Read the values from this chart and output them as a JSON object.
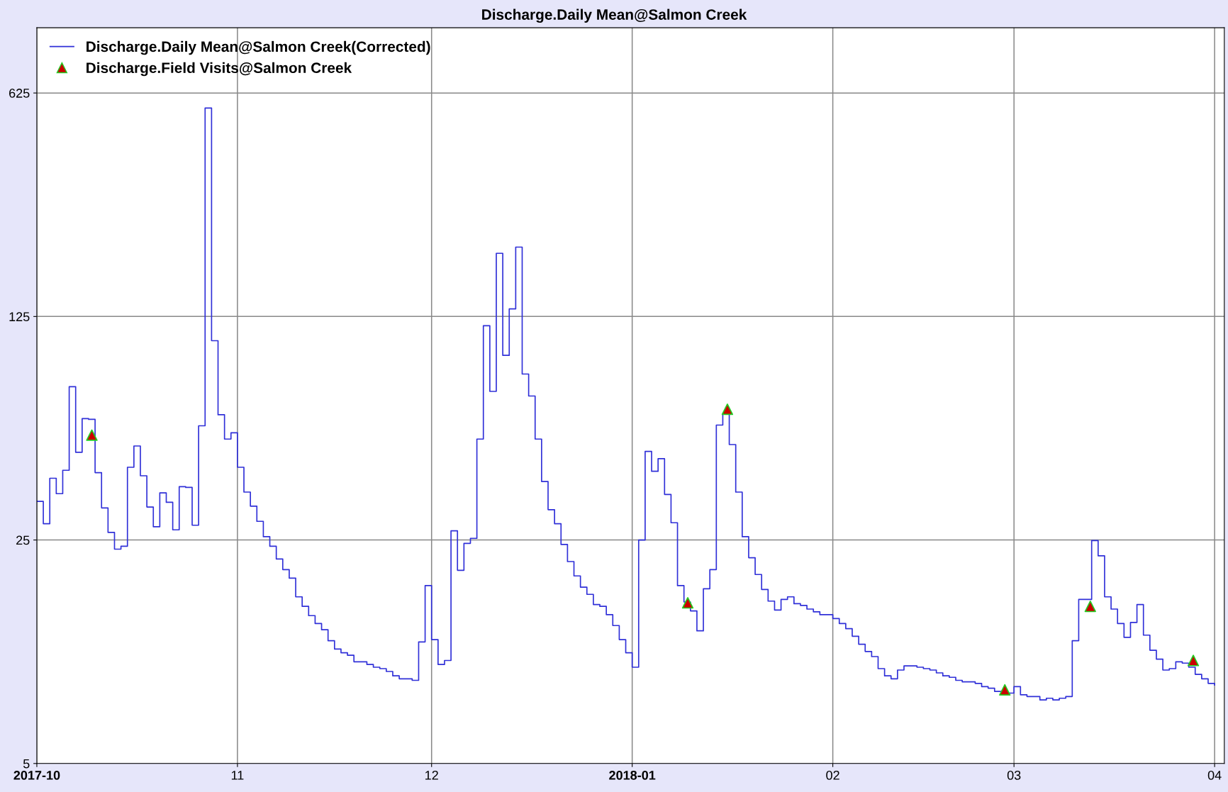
{
  "chart_data": {
    "type": "step",
    "title": "Discharge.Daily Mean@Salmon Creek",
    "log": "y",
    "grid": true,
    "legend": "top left",
    "xlim": [
      "2017-10-01",
      "2018-04-02T12:00"
    ],
    "xticks": [
      {
        "value": "2017-10-01",
        "label": "2017-10"
      },
      {
        "value": "2017-11-01",
        "label": "11"
      },
      {
        "value": "2017-12-01",
        "label": "12"
      },
      {
        "value": "2018-01-01",
        "label": "2018-01"
      },
      {
        "value": "2018-02-01",
        "label": "02"
      },
      {
        "value": "2018-03-01",
        "label": "03"
      },
      {
        "value": "2018-04-01",
        "label": "04"
      }
    ],
    "ylim": [
      5,
      1000
    ],
    "yticks": [
      5,
      25,
      125,
      625
    ],
    "series": [
      {
        "name": "Discharge.Daily Mean@Salmon Creek(Corrected)",
        "color": "#3030d8",
        "marker": "none",
        "line_style": "solid",
        "x": [
          "2017-10-01",
          "2017-10-02",
          "2017-10-03",
          "2017-10-04",
          "2017-10-05",
          "2017-10-06",
          "2017-10-07",
          "2017-10-08",
          "2017-10-09",
          "2017-10-10",
          "2017-10-11",
          "2017-10-12",
          "2017-10-13",
          "2017-10-14",
          "2017-10-15",
          "2017-10-16",
          "2017-10-17",
          "2017-10-18",
          "2017-10-19",
          "2017-10-20",
          "2017-10-21",
          "2017-10-22",
          "2017-10-23",
          "2017-10-24",
          "2017-10-25",
          "2017-10-26",
          "2017-10-27",
          "2017-10-28",
          "2017-10-29",
          "2017-10-30",
          "2017-10-31",
          "2017-11-01",
          "2017-11-02",
          "2017-11-03",
          "2017-11-04",
          "2017-11-05",
          "2017-11-06",
          "2017-11-07",
          "2017-11-08",
          "2017-11-09",
          "2017-11-10",
          "2017-11-11",
          "2017-11-12",
          "2017-11-13",
          "2017-11-14",
          "2017-11-15",
          "2017-11-16",
          "2017-11-17",
          "2017-11-18",
          "2017-11-19",
          "2017-11-20",
          "2017-11-21",
          "2017-11-22",
          "2017-11-23",
          "2017-11-24",
          "2017-11-25",
          "2017-11-26",
          "2017-11-27",
          "2017-11-28",
          "2017-11-29",
          "2017-11-30",
          "2017-12-01",
          "2017-12-02",
          "2017-12-03",
          "2017-12-04",
          "2017-12-05",
          "2017-12-06",
          "2017-12-07",
          "2017-12-08",
          "2017-12-09",
          "2017-12-10",
          "2017-12-11",
          "2017-12-12",
          "2017-12-13",
          "2017-12-14",
          "2017-12-15",
          "2017-12-16",
          "2017-12-17",
          "2017-12-18",
          "2017-12-19",
          "2017-12-20",
          "2017-12-21",
          "2017-12-22",
          "2017-12-23",
          "2017-12-24",
          "2017-12-25",
          "2017-12-26",
          "2017-12-27",
          "2017-12-28",
          "2017-12-29",
          "2017-12-30",
          "2017-12-31",
          "2018-01-01",
          "2018-01-02",
          "2018-01-03",
          "2018-01-04",
          "2018-01-05",
          "2018-01-06",
          "2018-01-07",
          "2018-01-08",
          "2018-01-09",
          "2018-01-10",
          "2018-01-11",
          "2018-01-12",
          "2018-01-13",
          "2018-01-14",
          "2018-01-15",
          "2018-01-16",
          "2018-01-17",
          "2018-01-18",
          "2018-01-19",
          "2018-01-20",
          "2018-01-21",
          "2018-01-22",
          "2018-01-23",
          "2018-01-24",
          "2018-01-25",
          "2018-01-26",
          "2018-01-27",
          "2018-01-28",
          "2018-01-29",
          "2018-01-30",
          "2018-01-31",
          "2018-02-01",
          "2018-02-02",
          "2018-02-03",
          "2018-02-04",
          "2018-02-05",
          "2018-02-06",
          "2018-02-07",
          "2018-02-08",
          "2018-02-09",
          "2018-02-10",
          "2018-02-11",
          "2018-02-12",
          "2018-02-13",
          "2018-02-14",
          "2018-02-15",
          "2018-02-16",
          "2018-02-17",
          "2018-02-18",
          "2018-02-19",
          "2018-02-20",
          "2018-02-21",
          "2018-02-22",
          "2018-02-23",
          "2018-02-24",
          "2018-02-25",
          "2018-02-26",
          "2018-02-27",
          "2018-02-28",
          "2018-03-01",
          "2018-03-02",
          "2018-03-03",
          "2018-03-04",
          "2018-03-05",
          "2018-03-06",
          "2018-03-07",
          "2018-03-08",
          "2018-03-09",
          "2018-03-10",
          "2018-03-11",
          "2018-03-12",
          "2018-03-13",
          "2018-03-14",
          "2018-03-15",
          "2018-03-16",
          "2018-03-17",
          "2018-03-18",
          "2018-03-19",
          "2018-03-20",
          "2018-03-21",
          "2018-03-22",
          "2018-03-23",
          "2018-03-24",
          "2018-03-25",
          "2018-03-26",
          "2018-03-27",
          "2018-03-28",
          "2018-03-29",
          "2018-03-30",
          "2018-03-31",
          "2018-04-01"
        ],
        "values": [
          33.0,
          28.1,
          39.0,
          34.9,
          41.3,
          75.4,
          47.0,
          59.9,
          59.6,
          40.6,
          31.5,
          26.4,
          23.4,
          23.9,
          42.2,
          49.2,
          39.7,
          31.7,
          27.5,
          35.1,
          32.8,
          26.9,
          36.7,
          36.5,
          27.8,
          56.9,
          561,
          105,
          61.6,
          51.7,
          54.1,
          42.2,
          35.3,
          31.9,
          28.6,
          25.6,
          23.9,
          21.8,
          20.2,
          19.0,
          16.6,
          15.5,
          14.5,
          13.7,
          13.1,
          12.1,
          11.4,
          11.1,
          10.9,
          10.4,
          10.4,
          10.2,
          10.0,
          9.9,
          9.7,
          9.4,
          9.2,
          9.2,
          9.1,
          12.0,
          18.0,
          12.2,
          10.2,
          10.5,
          26.7,
          20.1,
          24.4,
          25.3,
          51.7,
          117,
          72.9,
          197,
          94.5,
          132,
          206,
          82.6,
          70.5,
          51.7,
          38.1,
          31.1,
          28.1,
          24.2,
          21.4,
          19.3,
          17.8,
          16.9,
          15.7,
          15.5,
          14.6,
          13.5,
          12.2,
          11.1,
          10.0,
          25.0,
          47.3,
          41.0,
          44.9,
          34.7,
          28.3,
          18.0,
          16.0,
          15.0,
          13.0,
          17.6,
          20.2,
          57.2,
          61.9,
          49.7,
          35.3,
          25.6,
          22.0,
          19.5,
          17.5,
          16.1,
          15.1,
          16.3,
          16.6,
          15.8,
          15.6,
          15.2,
          14.9,
          14.6,
          14.6,
          14.2,
          13.7,
          13.2,
          12.5,
          11.8,
          11.2,
          10.8,
          9.9,
          9.4,
          9.2,
          9.8,
          10.1,
          10.1,
          10.0,
          9.9,
          9.8,
          9.6,
          9.4,
          9.3,
          9.1,
          9.0,
          9.0,
          8.9,
          8.7,
          8.6,
          8.4,
          8.4,
          8.3,
          8.7,
          8.2,
          8.1,
          8.1,
          7.9,
          8.0,
          7.9,
          8.0,
          8.1,
          12.1,
          16.3,
          16.3,
          24.9,
          22.3,
          16.6,
          15.2,
          13.7,
          12.4,
          13.8,
          15.7,
          12.6,
          11.3,
          10.6,
          9.8,
          9.9,
          10.4,
          10.3,
          10.0,
          9.5,
          9.2,
          8.9,
          8.8
        ]
      },
      {
        "name": "Discharge.Field Visits@Salmon Creek",
        "type": "scatter",
        "color": "#cc0000",
        "marker": "triangle",
        "x": [
          "2017-10-09T12:00",
          "2018-01-09T14:00",
          "2018-01-15T17:00",
          "2018-02-27T14:00",
          "2018-03-12T19:00",
          "2018-03-28T17:00"
        ],
        "values": [
          53.2,
          15.9,
          64.1,
          8.5,
          15.5,
          10.5
        ]
      }
    ]
  }
}
